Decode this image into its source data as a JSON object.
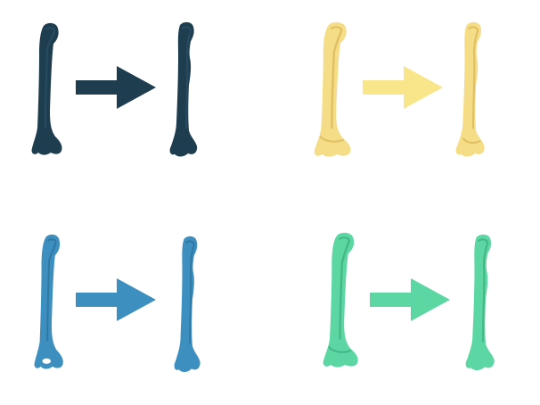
{
  "panels": [
    {
      "id": "panel-1",
      "color": "#1e3d4f",
      "shading": "#0f2634",
      "highlight": "#2c5570",
      "icons": [
        "bone-icon",
        "arrow-right-icon",
        "bone-icon"
      ]
    },
    {
      "id": "panel-2",
      "color": "#f5dc86",
      "shading": "#d9b95b",
      "highlight": "#fbe9a8",
      "arrow_color": "#f9e68b",
      "icons": [
        "bone-icon",
        "arrow-right-icon",
        "bone-icon"
      ]
    },
    {
      "id": "panel-3",
      "color": "#3d8fbf",
      "shading": "#2a6d96",
      "highlight": "#5aa9d4",
      "icons": [
        "bone-icon",
        "arrow-right-icon",
        "bone-icon"
      ]
    },
    {
      "id": "panel-4",
      "color": "#5cd6a2",
      "shading": "#3fb07f",
      "highlight": "#84e6bb",
      "icons": [
        "bone-icon",
        "arrow-right-icon",
        "bone-icon"
      ]
    }
  ]
}
